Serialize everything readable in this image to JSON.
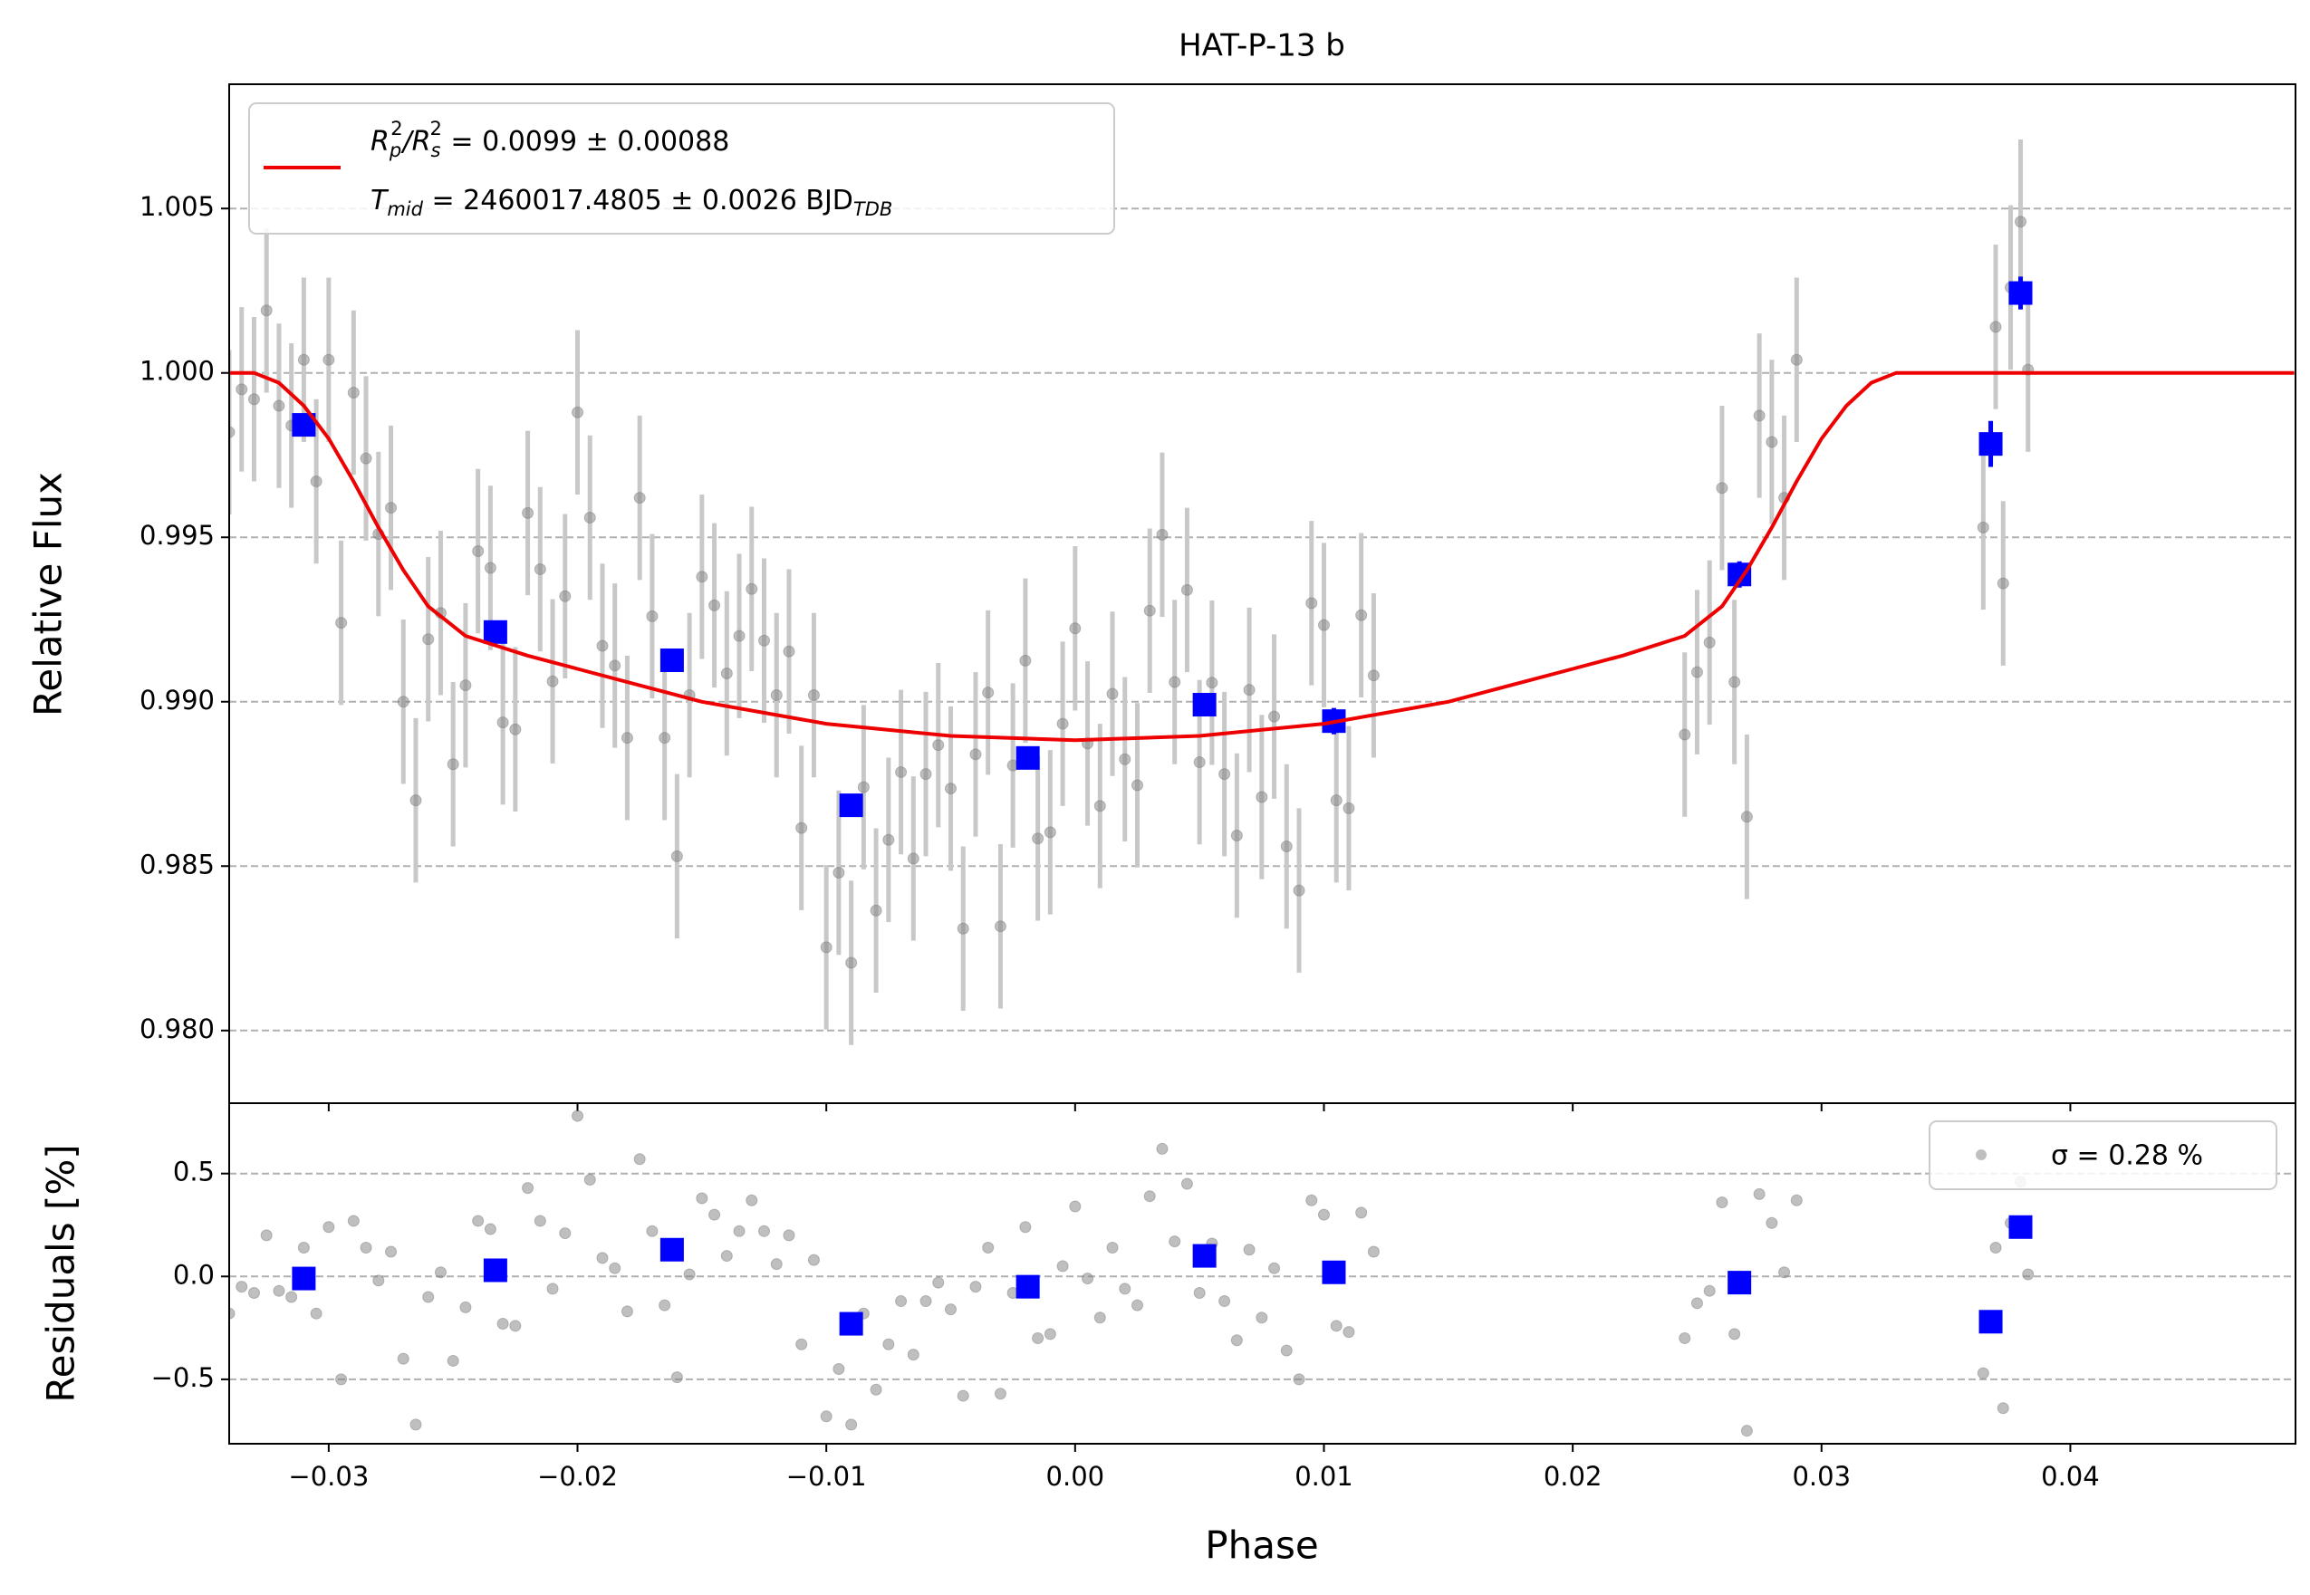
{
  "chart_data": [
    {
      "type": "scatter",
      "title": "HAT-P-13 b",
      "ylabel": "Relative Flux",
      "xlim": [
        -0.034,
        0.04905
      ],
      "ylim": [
        0.97779,
        1.00878
      ],
      "yticks": [
        {
          "value": 0.98,
          "label": "0.980"
        },
        {
          "value": 0.985,
          "label": "0.985"
        },
        {
          "value": 0.99,
          "label": "0.990"
        },
        {
          "value": 0.995,
          "label": "0.995"
        },
        {
          "value": 1.0,
          "label": "1.000"
        },
        {
          "value": 1.005,
          "label": "1.005"
        }
      ],
      "grid": true,
      "legend": {
        "corner": "upper left",
        "lines": [
          [
            "R",
            "p",
            "2",
            "/R",
            "s",
            "2",
            " = 0.0099 ± 0.00088"
          ],
          [
            "T",
            "mid",
            " = 2460017.4805 ± 0.0026 BJD",
            "TDB"
          ]
        ]
      },
      "series": [
        {
          "type": "scatter",
          "color": "#808080",
          "yerr": 0.0025,
          "x": [
            -0.034,
            -0.0335,
            -0.033,
            -0.0325,
            -0.032,
            -0.0315,
            -0.031,
            -0.0305,
            -0.03,
            -0.0295,
            -0.029,
            -0.0285,
            -0.028,
            -0.0275,
            -0.027,
            -0.0265,
            -0.026,
            -0.0255,
            -0.025,
            -0.0245,
            -0.024,
            -0.0235,
            -0.023,
            -0.0225,
            -0.022,
            -0.0215,
            -0.021,
            -0.0205,
            -0.02,
            -0.0195,
            -0.019,
            -0.0185,
            -0.018,
            -0.0175,
            -0.017,
            -0.0165,
            -0.016,
            -0.0155,
            -0.015,
            -0.0145,
            -0.014,
            -0.0135,
            -0.013,
            -0.0125,
            -0.012,
            -0.0115,
            -0.011,
            -0.0105,
            -0.01,
            -0.0095,
            -0.009,
            -0.0085,
            -0.008,
            -0.0075,
            -0.007,
            -0.0065,
            -0.006,
            -0.0055,
            -0.005,
            -0.0045,
            -0.004,
            -0.0035,
            -0.003,
            -0.0025,
            -0.002,
            -0.0015,
            -0.001,
            -0.0005,
            0,
            0.0005,
            0.001,
            0.0015,
            0.002,
            0.0025,
            0.003,
            0.0035,
            0.004,
            0.0045,
            0.005,
            0.0055,
            0.006,
            0.0065,
            0.007,
            0.0075,
            0.008,
            0.0085,
            0.009,
            0.0095,
            0.01,
            0.0105,
            0.011,
            0.0115,
            0.012,
            0.0245,
            0.025,
            0.0255,
            0.026,
            0.0265,
            0.027,
            0.0275,
            0.028,
            0.0285,
            0.029,
            0.0365,
            0.037,
            0.0373,
            0.0376,
            0.038,
            0.0383
          ],
          "values": [
            0.9982,
            0.9995,
            0.9992,
            1.0019,
            0.999,
            0.9984,
            1.0004,
            0.9967,
            1.0004,
            0.9924,
            0.9994,
            0.9974,
            0.9951,
            0.9959,
            0.99,
            0.987,
            0.9919,
            0.9927,
            0.9881,
            0.9905,
            0.99458,
            0.99407,
            0.98937,
            0.98916,
            0.99574,
            0.99403,
            0.99062,
            0.99321,
            0.9988,
            0.9956,
            0.9917,
            0.9911,
            0.9889,
            0.9962,
            0.9926,
            0.9889,
            0.9853,
            0.9902,
            0.9938,
            0.99293,
            0.99086,
            0.992,
            0.99343,
            0.99186,
            0.9902,
            0.99153,
            0.98616,
            0.9902,
            0.98253,
            0.9848,
            0.98206,
            0.9874,
            0.98365,
            0.9858,
            0.98786,
            0.98523,
            0.9878,
            0.98868,
            0.98736,
            0.9831,
            0.9884,
            0.99028,
            0.98317,
            0.98806,
            0.99125,
            0.98584,
            0.98603,
            0.98933,
            0.99223,
            0.98873,
            0.98683,
            0.99024,
            0.98825,
            0.98746,
            0.99277,
            0.99508,
            0.9906,
            0.9934,
            0.98816,
            0.99058,
            0.9878,
            0.98593,
            0.99036,
            0.9871,
            0.98955,
            0.9856,
            0.98426,
            0.993,
            0.99233,
            0.987,
            0.98676,
            0.99263,
            0.9908,
            0.989,
            0.9909,
            0.9918,
            0.9965,
            0.9906,
            0.9865,
            0.9987,
            0.9979,
            0.9962,
            1.0004,
            0.9953,
            1.0014,
            0.9936,
            1.0026,
            1.0046,
            1.0001
          ]
        },
        {
          "type": "scatter",
          "color": "#0000ff",
          "x": [
            -0.031,
            -0.0233,
            -0.0162,
            -0.009,
            -0.0019,
            0.0052,
            0.0104,
            0.0267,
            0.0368,
            0.038
          ],
          "values": [
            0.99842,
            0.99212,
            0.99126,
            0.98685,
            0.98829,
            0.98991,
            0.98941,
            0.99387,
            0.99784,
            1.00243
          ],
          "yerr": [
            0.0003,
            0.0003,
            0.0003,
            0.0003,
            0.0003,
            0.0003,
            0.0004,
            0.0004,
            0.0007,
            0.0005
          ]
        },
        {
          "type": "line",
          "color": "#ee0000",
          "x": [
            -0.034,
            -0.033,
            -0.032,
            -0.031,
            -0.03,
            -0.029,
            -0.028,
            -0.027,
            -0.026,
            -0.0245,
            -0.022,
            -0.02,
            -0.015,
            -0.01,
            -0.005,
            0,
            0.005,
            0.01,
            0.015,
            0.02,
            0.022,
            0.0245,
            0.026,
            0.027,
            0.028,
            0.029,
            0.03,
            0.031,
            0.032,
            0.033,
            0.049
          ],
          "values": [
            1,
            1,
            0.9997,
            0.999,
            0.998,
            0.9967,
            0.9953,
            0.994,
            0.9929,
            0.992,
            0.9914,
            0.991,
            0.99,
            0.98933,
            0.98896,
            0.98883,
            0.98896,
            0.98933,
            0.99,
            0.991,
            0.9914,
            0.992,
            0.9929,
            0.994,
            0.9953,
            0.9967,
            0.998,
            0.999,
            0.9997,
            1,
            1
          ]
        }
      ]
    },
    {
      "type": "scatter",
      "ylabel": "Residuals [%]",
      "xlabel": "Phase",
      "xlim": [
        -0.034,
        0.04905
      ],
      "ylim": [
        -0.813,
        0.842
      ],
      "xticks": [
        {
          "value": -0.03,
          "label": "−0.03"
        },
        {
          "value": -0.02,
          "label": "−0.02"
        },
        {
          "value": -0.01,
          "label": "−0.01"
        },
        {
          "value": 0,
          "label": "0.00"
        },
        {
          "value": 0.01,
          "label": "0.01"
        },
        {
          "value": 0.02,
          "label": "0.02"
        },
        {
          "value": 0.03,
          "label": "0.03"
        },
        {
          "value": 0.04,
          "label": "0.04"
        }
      ],
      "yticks": [
        {
          "value": -0.5,
          "label": "−0.5"
        },
        {
          "value": 0,
          "label": "0.0"
        },
        {
          "value": 0.5,
          "label": "0.5"
        }
      ],
      "grid": true,
      "legend": {
        "corner": "upper right"
      },
      "series": [
        {
          "type": "scatter",
          "name": "σ = 0.28 %",
          "color": "#808080",
          "x": [
            -0.034,
            -0.0335,
            -0.033,
            -0.0325,
            -0.032,
            -0.0315,
            -0.031,
            -0.0305,
            -0.03,
            -0.0295,
            -0.029,
            -0.0285,
            -0.028,
            -0.0275,
            -0.027,
            -0.0265,
            -0.026,
            -0.0255,
            -0.025,
            -0.0245,
            -0.024,
            -0.0235,
            -0.023,
            -0.0225,
            -0.022,
            -0.0215,
            -0.021,
            -0.0205,
            -0.02,
            -0.0195,
            -0.019,
            -0.0185,
            -0.018,
            -0.0175,
            -0.017,
            -0.0165,
            -0.016,
            -0.0155,
            -0.015,
            -0.0145,
            -0.014,
            -0.0135,
            -0.013,
            -0.0125,
            -0.012,
            -0.0115,
            -0.011,
            -0.0105,
            -0.01,
            -0.0095,
            -0.009,
            -0.0085,
            -0.008,
            -0.0075,
            -0.007,
            -0.0065,
            -0.006,
            -0.0055,
            -0.005,
            -0.0045,
            -0.004,
            -0.0035,
            -0.003,
            -0.0025,
            -0.002,
            -0.0015,
            -0.001,
            -0.0005,
            0,
            0.0005,
            0.001,
            0.0015,
            0.002,
            0.0025,
            0.003,
            0.0035,
            0.004,
            0.0045,
            0.005,
            0.0055,
            0.006,
            0.0065,
            0.007,
            0.0075,
            0.008,
            0.0085,
            0.009,
            0.0095,
            0.01,
            0.0105,
            0.011,
            0.0115,
            0.012,
            0.0245,
            0.025,
            0.0255,
            0.026,
            0.0265,
            0.027,
            0.0275,
            0.028,
            0.0285,
            0.029,
            0.0365,
            0.037,
            0.0373,
            0.0376,
            0.038,
            0.0383
          ],
          "values": [
            -0.18,
            -0.05,
            -0.08,
            0.2,
            -0.07,
            -0.1,
            0.14,
            -0.18,
            0.24,
            -0.5,
            0.27,
            0.14,
            -0.02,
            0.12,
            -0.4,
            -0.72,
            -0.1,
            0.02,
            -0.41,
            -0.15,
            0.27,
            0.23,
            -0.23,
            -0.24,
            0.43,
            0.27,
            -0.06,
            0.21,
            0.78,
            0.47,
            0.09,
            0.04,
            -0.17,
            0.57,
            0.22,
            -0.14,
            -0.49,
            0.01,
            0.38,
            0.3,
            0.1,
            0.22,
            0.37,
            0.22,
            0.06,
            0.2,
            -0.33,
            0.08,
            -0.68,
            -0.45,
            -0.72,
            -0.18,
            -0.55,
            -0.33,
            -0.12,
            -0.38,
            -0.12,
            -0.03,
            -0.16,
            -0.58,
            -0.05,
            0.14,
            -0.57,
            -0.08,
            0.24,
            -0.3,
            -0.28,
            0.05,
            0.34,
            -0.01,
            -0.2,
            0.14,
            -0.06,
            -0.14,
            0.39,
            0.62,
            0.17,
            0.45,
            -0.08,
            0.16,
            -0.12,
            -0.31,
            0.13,
            -0.2,
            0.04,
            -0.36,
            -0.5,
            0.37,
            0.3,
            -0.24,
            -0.27,
            0.31,
            0.12,
            -0.3,
            -0.13,
            -0.07,
            0.36,
            -0.28,
            -0.75,
            0.4,
            0.26,
            0.02,
            0.37,
            -0.47,
            0.14,
            -0.64,
            0.26,
            0.46,
            0.01
          ]
        },
        {
          "type": "scatter",
          "color": "#0000ff",
          "x": [
            -0.031,
            -0.0233,
            -0.0162,
            -0.009,
            -0.0019,
            0.0052,
            0.0104,
            0.0267,
            0.0368,
            0.038
          ],
          "values": [
            -0.01,
            0.03,
            0.13,
            -0.23,
            -0.05,
            0.1,
            0.02,
            -0.03,
            -0.22,
            0.24
          ]
        }
      ]
    }
  ]
}
